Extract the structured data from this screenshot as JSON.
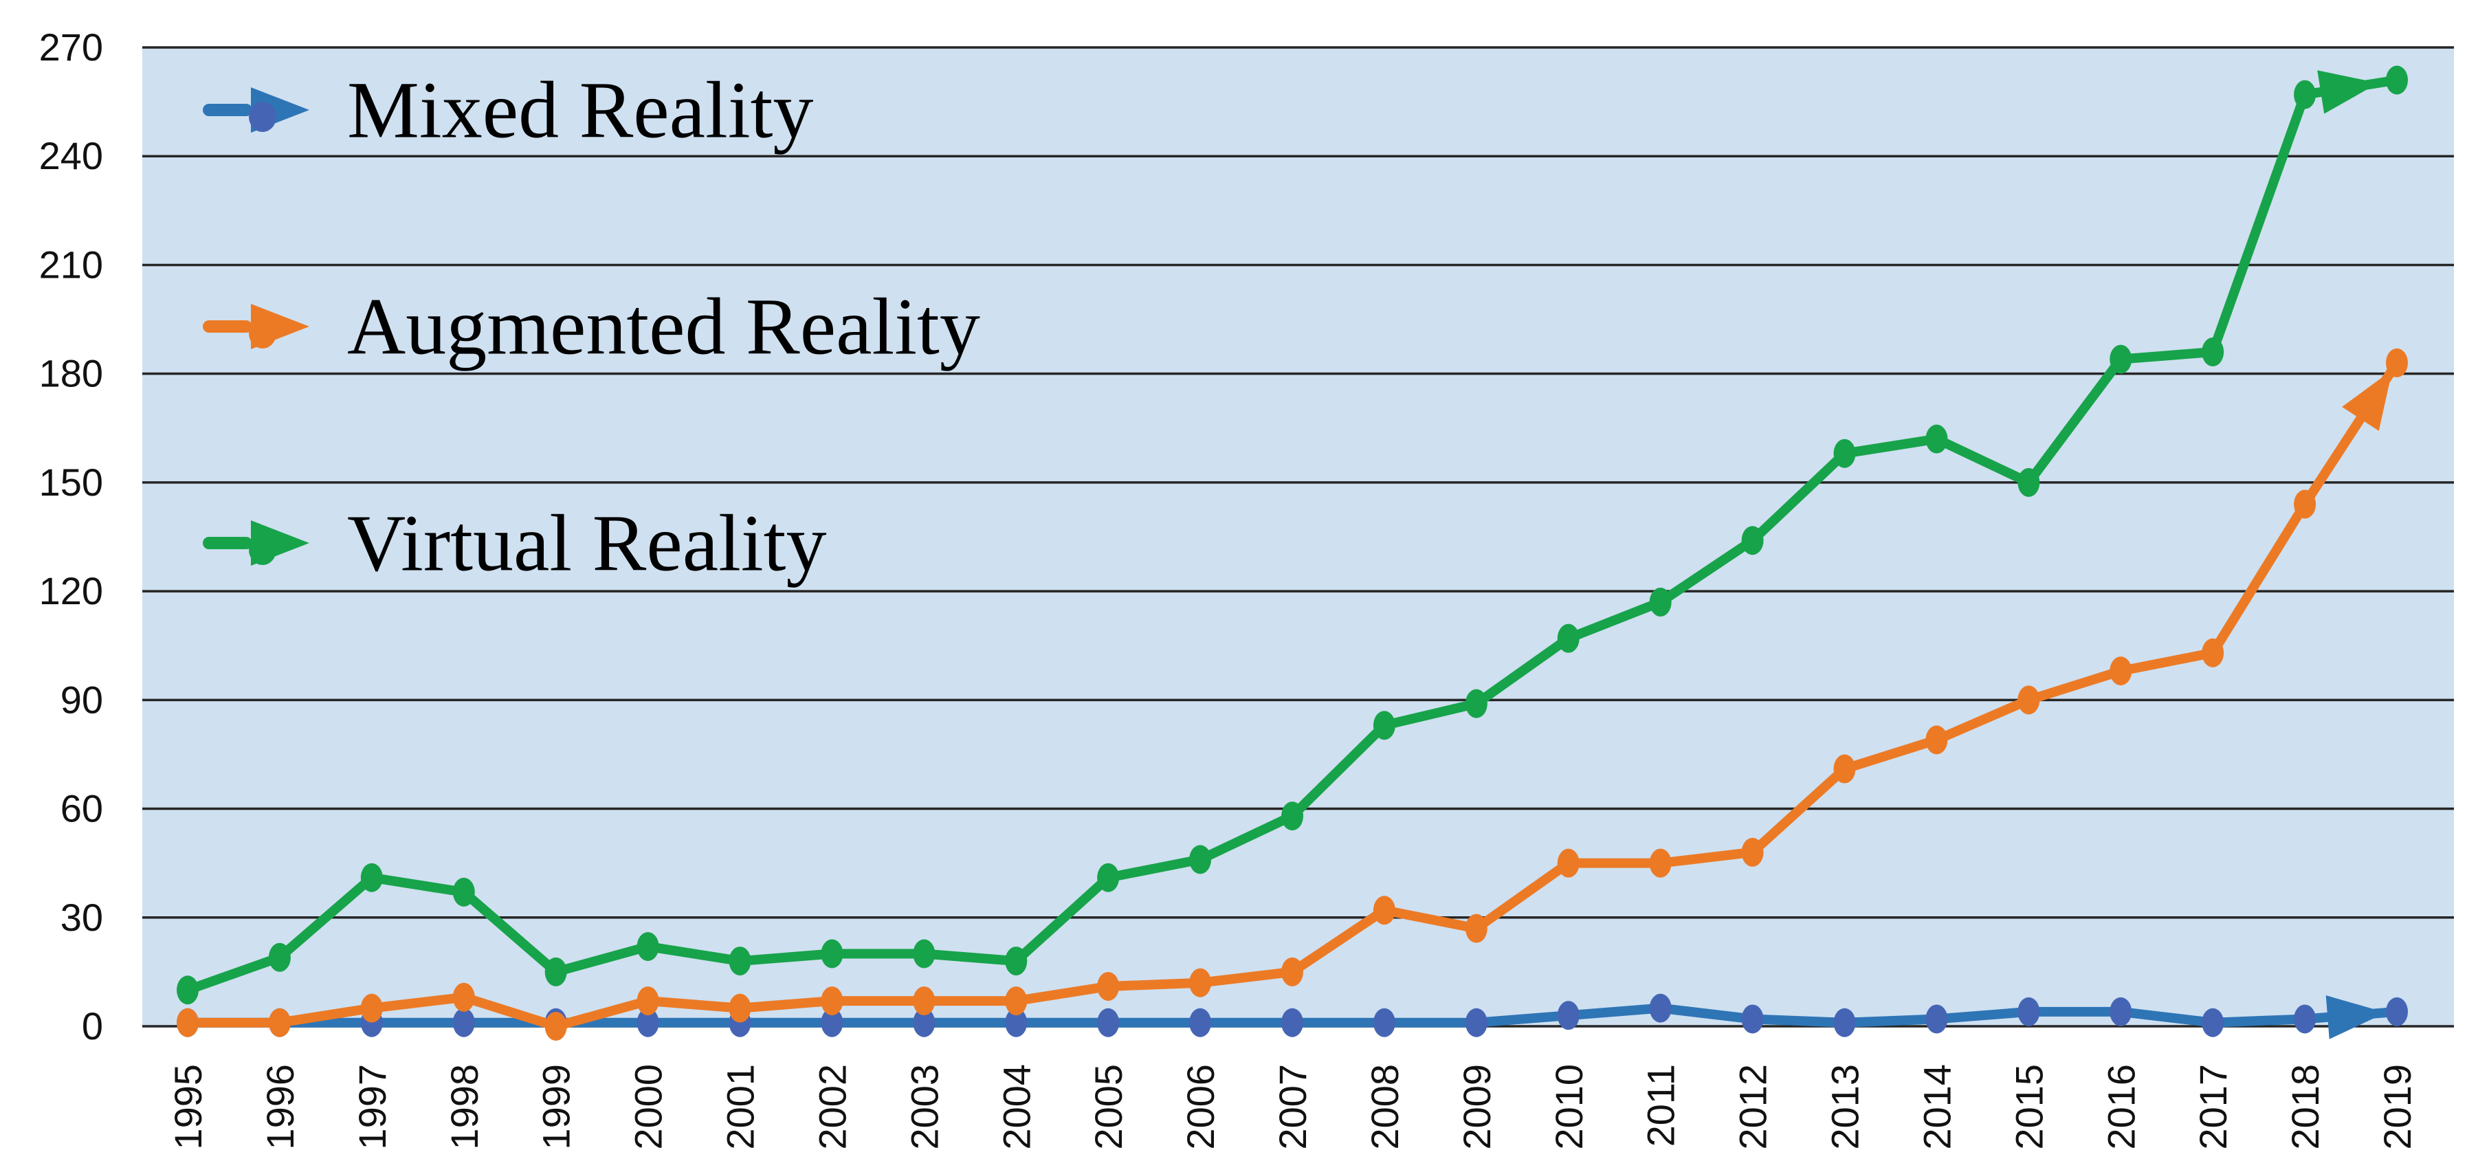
{
  "chart_data": {
    "type": "line",
    "title": "",
    "xlabel": "",
    "ylabel": "",
    "x": [
      1995,
      1996,
      1997,
      1998,
      1999,
      2000,
      2001,
      2002,
      2003,
      2004,
      2005,
      2006,
      2007,
      2008,
      2009,
      2010,
      2011,
      2012,
      2013,
      2014,
      2015,
      2016,
      2017,
      2018,
      2019
    ],
    "series": [
      {
        "name": "Mixed Reality",
        "color": "#2E75B6",
        "marker_color": "#4565B4",
        "values": [
          1,
          1,
          1,
          1,
          1,
          1,
          1,
          1,
          1,
          1,
          1,
          1,
          1,
          1,
          1,
          3,
          5,
          2,
          1,
          2,
          4,
          4,
          1,
          2,
          4
        ]
      },
      {
        "name": "Augmented Reality",
        "color": "#EC7A25",
        "marker_color": "#EC7A25",
        "values": [
          1,
          1,
          5,
          8,
          0,
          7,
          5,
          7,
          7,
          7,
          11,
          12,
          15,
          32,
          27,
          45,
          45,
          48,
          71,
          79,
          90,
          98,
          103,
          144,
          183
        ]
      },
      {
        "name": "Virtual Reality",
        "color": "#17A34A",
        "marker_color": "#17A34A",
        "values": [
          10,
          19,
          41,
          37,
          15,
          22,
          18,
          20,
          20,
          18,
          41,
          46,
          58,
          83,
          89,
          107,
          117,
          134,
          158,
          162,
          150,
          184,
          186,
          257,
          261
        ]
      }
    ],
    "ylim": [
      0,
      270
    ],
    "ytick_step": 30,
    "yticks": [
      0,
      30,
      60,
      90,
      120,
      150,
      180,
      210,
      240,
      270
    ],
    "grid": true,
    "legend_position": "inside-top-left",
    "legend_items": [
      "Mixed Reality",
      "Augmented Reality",
      "Virtual Reality"
    ],
    "plot_bg_color": "#CFE0F0",
    "grid_color": "#262626",
    "label_color": "#111111",
    "end_arrowheads": true
  }
}
